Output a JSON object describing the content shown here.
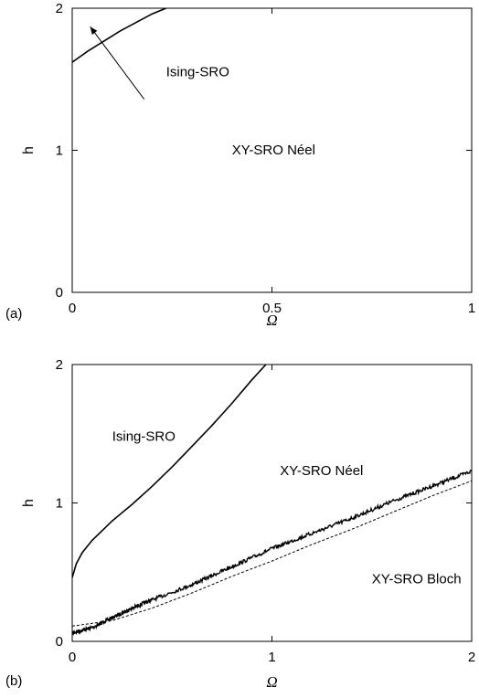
{
  "chart_data": [
    {
      "panel": "(a)",
      "type": "line",
      "xlabel": "Ω",
      "ylabel": "h",
      "xlim": [
        0,
        1
      ],
      "ylim": [
        0,
        2
      ],
      "xticks": [
        "0",
        "0.5",
        "1"
      ],
      "yticks": [
        "0",
        "1",
        "2"
      ],
      "series": [
        {
          "style": "solid",
          "x": [
            0.0,
            0.04,
            0.08,
            0.12,
            0.16,
            0.2,
            0.235
          ],
          "y": [
            1.62,
            1.7,
            1.77,
            1.84,
            1.9,
            1.96,
            2.0
          ]
        }
      ],
      "annotations": [
        {
          "text": "Ising-SRO",
          "x": 0.235,
          "y": 1.52
        },
        {
          "text": "XY-SRO Néel",
          "x": 0.4,
          "y": 0.97
        }
      ],
      "arrow": {
        "from": [
          0.18,
          1.36
        ],
        "to": [
          0.045,
          1.87
        ]
      }
    },
    {
      "panel": "(b)",
      "type": "line",
      "xlabel": "Ω",
      "ylabel": "h",
      "xlim": [
        0,
        2
      ],
      "ylim": [
        0,
        2
      ],
      "xticks": [
        "0",
        "1",
        "2"
      ],
      "yticks": [
        "0",
        "1",
        "2"
      ],
      "series": [
        {
          "style": "solid",
          "x": [
            0.0,
            0.02,
            0.05,
            0.1,
            0.15,
            0.2,
            0.3,
            0.4,
            0.5,
            0.6,
            0.7,
            0.8,
            0.9,
            0.97
          ],
          "y": [
            0.46,
            0.56,
            0.64,
            0.73,
            0.8,
            0.87,
            0.99,
            1.12,
            1.26,
            1.41,
            1.56,
            1.72,
            1.89,
            2.0
          ]
        },
        {
          "style": "thick",
          "x": [
            0.0,
            0.1,
            0.2,
            0.3,
            0.4,
            0.6,
            0.8,
            1.0,
            1.2,
            1.4,
            1.6,
            1.8,
            2.0
          ],
          "y": [
            0.06,
            0.1,
            0.17,
            0.24,
            0.3,
            0.41,
            0.54,
            0.67,
            0.78,
            0.89,
            1.01,
            1.12,
            1.23
          ]
        },
        {
          "style": "dashed",
          "x": [
            0.0,
            0.2,
            0.4,
            0.6,
            0.8,
            1.0,
            1.2,
            1.4,
            1.6,
            1.8,
            2.0
          ],
          "y": [
            0.11,
            0.15,
            0.24,
            0.35,
            0.47,
            0.58,
            0.7,
            0.81,
            0.93,
            1.05,
            1.16
          ]
        }
      ],
      "annotations": [
        {
          "text": "Ising-SRO",
          "x": 0.2,
          "y": 1.45
        },
        {
          "text": "XY-SRO Néel",
          "x": 1.04,
          "y": 1.2
        },
        {
          "text": "XY-SRO Bloch",
          "x": 1.5,
          "y": 0.42
        }
      ]
    }
  ]
}
